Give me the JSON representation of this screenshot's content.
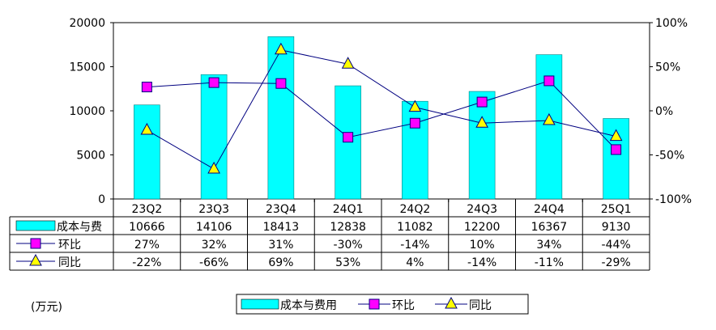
{
  "chart_data": {
    "type": "bar",
    "categories": [
      "23Q2",
      "23Q3",
      "23Q4",
      "24Q1",
      "24Q2",
      "24Q3",
      "24Q4",
      "25Q1"
    ],
    "series": [
      {
        "name": "成本与费用",
        "type": "bar",
        "axis": "left",
        "color": "#00FFFF",
        "values": [
          10666,
          14106,
          18413,
          12838,
          11082,
          12200,
          16367,
          9130
        ],
        "labels": [
          "10666",
          "14106",
          "18413",
          "12838",
          "11082",
          "12200",
          "16367",
          "9130"
        ]
      },
      {
        "name": "环比",
        "type": "line",
        "axis": "right",
        "color": "#FF00FF",
        "values": [
          27,
          32,
          31,
          -30,
          -14,
          10,
          34,
          -44
        ],
        "labels": [
          "27%",
          "32%",
          "31%",
          "-30%",
          "-14%",
          "10%",
          "34%",
          "-44%"
        ]
      },
      {
        "name": "同比",
        "type": "line",
        "axis": "right",
        "color": "#FFFF00",
        "values": [
          -22,
          -66,
          69,
          53,
          4,
          -14,
          -11,
          -29
        ],
        "labels": [
          "-22%",
          "-66%",
          "69%",
          "53%",
          "4%",
          "-14%",
          "-11%",
          "-29%"
        ]
      }
    ],
    "left_axis": {
      "ylim": [
        0,
        20000
      ],
      "ticks": [
        "0",
        "5000",
        "10000",
        "15000",
        "20000"
      ]
    },
    "right_axis": {
      "ylim": [
        -100,
        100
      ],
      "ticks": [
        "-100%",
        "-50%",
        "0%",
        "50%",
        "100%"
      ]
    },
    "table_row_labels": [
      "成本与费",
      "环比",
      "同比"
    ],
    "unit_label": "(万元)",
    "legend": [
      "成本与费用",
      "环比",
      "同比"
    ],
    "legend_position": "bottom",
    "line_color": "#000080",
    "grid": false
  }
}
